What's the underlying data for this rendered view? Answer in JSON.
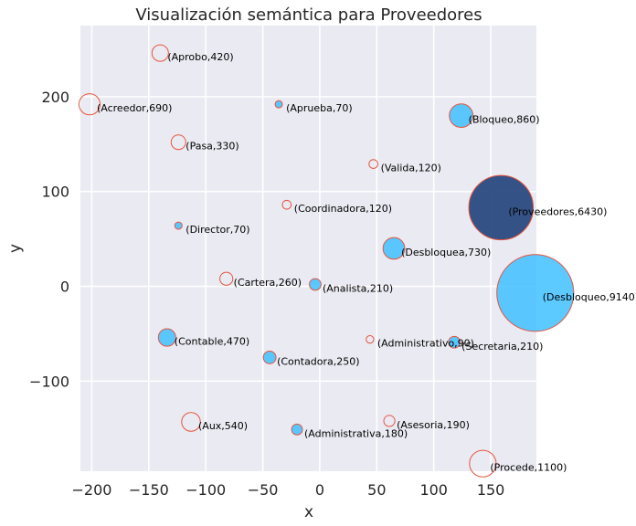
{
  "chart_data": {
    "type": "scatter",
    "title": "Visualización semántica para Proveedores",
    "xlabel": "x",
    "ylabel": "y",
    "xlim": [
      -210,
      190
    ],
    "ylim": [
      -195,
      275
    ],
    "xticks": [
      -200,
      -150,
      -100,
      -50,
      0,
      50,
      100,
      150
    ],
    "yticks": [
      -100,
      0,
      100,
      200
    ],
    "xtick_labels": [
      "−200",
      "−150",
      "−100",
      "−50",
      "0",
      "50",
      "100",
      "150"
    ],
    "ytick_labels": [
      "−100",
      "0",
      "100",
      "200"
    ],
    "grid": true,
    "colors": {
      "background": "#eaeaf2",
      "grid": "#ffffff",
      "filled": "#40bfff",
      "highlight": "#2b4a80",
      "edge": "#e5553f"
    },
    "points": [
      {
        "word": "Aprobo",
        "freq": 420,
        "label": "(Aprobo,420)",
        "x": -140,
        "y": 246,
        "style": "hollow"
      },
      {
        "word": "Acreedor",
        "freq": 690,
        "label": "(Acreedor,690)",
        "x": -202,
        "y": 192,
        "style": "hollow"
      },
      {
        "word": "Aprueba",
        "freq": 70,
        "label": "(Aprueba,70)",
        "x": -36,
        "y": 192,
        "style": "filled"
      },
      {
        "word": "Bloqueo",
        "freq": 860,
        "label": "(Bloqueo,860)",
        "x": 124,
        "y": 180,
        "style": "filled"
      },
      {
        "word": "Pasa",
        "freq": 330,
        "label": "(Pasa,330)",
        "x": -124,
        "y": 152,
        "style": "hollow"
      },
      {
        "word": "Valida",
        "freq": 120,
        "label": "(Valida,120)",
        "x": 47,
        "y": 129,
        "style": "hollow"
      },
      {
        "word": "Coordinadora",
        "freq": 120,
        "label": "(Coordinadora,120)",
        "x": -29,
        "y": 86,
        "style": "hollow"
      },
      {
        "word": "Proveedores",
        "freq": 6430,
        "label": "(Proveedores,6430)",
        "x": 159,
        "y": 83,
        "style": "highlight"
      },
      {
        "word": "Director",
        "freq": 70,
        "label": "(Director,70)",
        "x": -124,
        "y": 64,
        "style": "filled"
      },
      {
        "word": "Desbloquea",
        "freq": 730,
        "label": "(Desbloquea,730)",
        "x": 65,
        "y": 40,
        "style": "filled"
      },
      {
        "word": "Cartera",
        "freq": 260,
        "label": "(Cartera,260)",
        "x": -82,
        "y": 8,
        "style": "hollow"
      },
      {
        "word": "Analista",
        "freq": 210,
        "label": "(Analista,210)",
        "x": -4,
        "y": 2,
        "style": "filled"
      },
      {
        "word": "Desbloqueo",
        "freq": 9140,
        "label": "(Desbloqueo,9140)",
        "x": 189,
        "y": -7,
        "style": "filled"
      },
      {
        "word": "Contable",
        "freq": 470,
        "label": "(Contable,470)",
        "x": -134,
        "y": -54,
        "style": "filled"
      },
      {
        "word": "Administrativo",
        "freq": 90,
        "label": "(Administrativo,90)",
        "x": 44,
        "y": -56,
        "style": "hollow"
      },
      {
        "word": "Secretaria",
        "freq": 210,
        "label": "(Secretaria,210)",
        "x": 118,
        "y": -59,
        "style": "filled"
      },
      {
        "word": "Contadora",
        "freq": 250,
        "label": "(Contadora,250)",
        "x": -44,
        "y": -75,
        "style": "filled"
      },
      {
        "word": "Aux",
        "freq": 540,
        "label": "(Aux,540)",
        "x": -113,
        "y": -143,
        "style": "hollow"
      },
      {
        "word": "Asesoria",
        "freq": 190,
        "label": "(Asesoria,190)",
        "x": 61,
        "y": -142,
        "style": "hollow"
      },
      {
        "word": "Administrativa",
        "freq": 180,
        "label": "(Administrativa,180)",
        "x": -20,
        "y": -151,
        "style": "filled"
      },
      {
        "word": "Procede",
        "freq": 1100,
        "label": "(Procede,1100)",
        "x": 143,
        "y": -187,
        "style": "hollow"
      }
    ]
  }
}
